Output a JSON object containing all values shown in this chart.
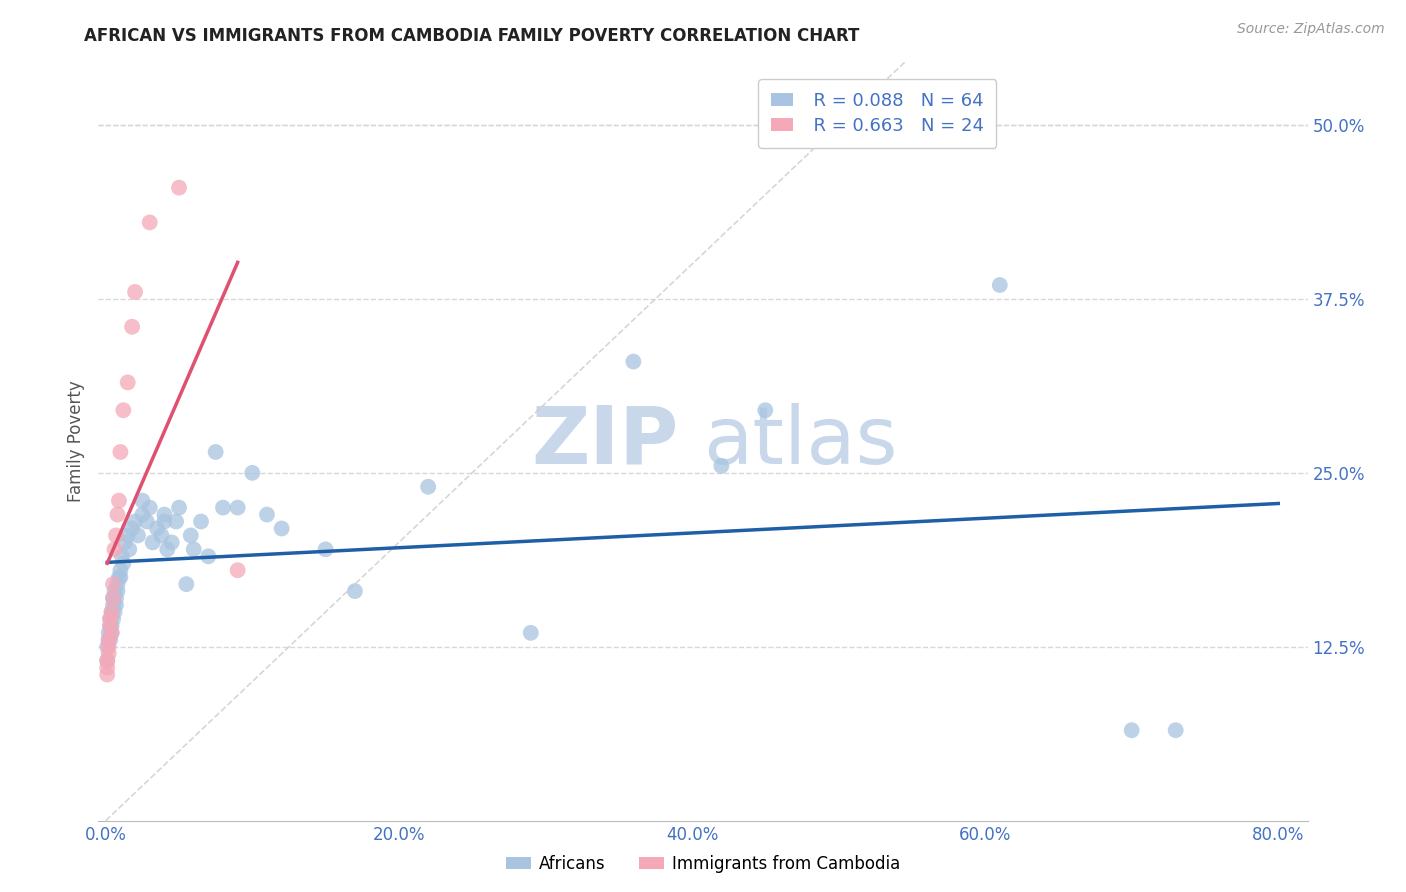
{
  "title": "AFRICAN VS IMMIGRANTS FROM CAMBODIA FAMILY POVERTY CORRELATION CHART",
  "source": "Source: ZipAtlas.com",
  "xlabel_ticks": [
    "0.0%",
    "20.0%",
    "40.0%",
    "60.0%",
    "80.0%"
  ],
  "ylabel_ticks": [
    "12.5%",
    "25.0%",
    "37.5%",
    "50.0%"
  ],
  "xlabel_vals": [
    0.0,
    0.2,
    0.4,
    0.6,
    0.8
  ],
  "ylabel_vals": [
    0.125,
    0.25,
    0.375,
    0.5
  ],
  "xlim": [
    -0.005,
    0.82
  ],
  "ylim": [
    0.0,
    0.545
  ],
  "africans_x": [
    0.001,
    0.001,
    0.002,
    0.002,
    0.003,
    0.003,
    0.003,
    0.004,
    0.004,
    0.004,
    0.005,
    0.005,
    0.005,
    0.006,
    0.006,
    0.007,
    0.007,
    0.008,
    0.008,
    0.009,
    0.01,
    0.01,
    0.011,
    0.012,
    0.013,
    0.015,
    0.016,
    0.018,
    0.02,
    0.022,
    0.025,
    0.025,
    0.028,
    0.03,
    0.032,
    0.035,
    0.038,
    0.04,
    0.04,
    0.042,
    0.045,
    0.048,
    0.05,
    0.055,
    0.058,
    0.06,
    0.065,
    0.07,
    0.075,
    0.08,
    0.09,
    0.1,
    0.11,
    0.12,
    0.15,
    0.17,
    0.22,
    0.29,
    0.36,
    0.42,
    0.45,
    0.61,
    0.7,
    0.73
  ],
  "africans_y": [
    0.115,
    0.125,
    0.13,
    0.135,
    0.13,
    0.14,
    0.145,
    0.135,
    0.14,
    0.15,
    0.145,
    0.155,
    0.16,
    0.165,
    0.15,
    0.16,
    0.155,
    0.17,
    0.165,
    0.175,
    0.175,
    0.18,
    0.19,
    0.185,
    0.2,
    0.205,
    0.195,
    0.21,
    0.215,
    0.205,
    0.22,
    0.23,
    0.215,
    0.225,
    0.2,
    0.21,
    0.205,
    0.215,
    0.22,
    0.195,
    0.2,
    0.215,
    0.225,
    0.17,
    0.205,
    0.195,
    0.215,
    0.19,
    0.265,
    0.225,
    0.225,
    0.25,
    0.22,
    0.21,
    0.195,
    0.165,
    0.24,
    0.135,
    0.33,
    0.255,
    0.295,
    0.385,
    0.065,
    0.065
  ],
  "cambodia_x": [
    0.001,
    0.001,
    0.001,
    0.002,
    0.002,
    0.002,
    0.003,
    0.003,
    0.004,
    0.004,
    0.005,
    0.005,
    0.006,
    0.007,
    0.008,
    0.009,
    0.01,
    0.012,
    0.015,
    0.018,
    0.02,
    0.03,
    0.05,
    0.09
  ],
  "cambodia_y": [
    0.105,
    0.11,
    0.115,
    0.12,
    0.125,
    0.13,
    0.14,
    0.145,
    0.15,
    0.135,
    0.16,
    0.17,
    0.195,
    0.205,
    0.22,
    0.23,
    0.265,
    0.295,
    0.315,
    0.355,
    0.38,
    0.43,
    0.455,
    0.18
  ],
  "african_color": "#a8c4e0",
  "cambodia_color": "#f4a8b8",
  "african_line_color": "#1f5fa6",
  "cambodia_line_color": "#e05070",
  "diagonal_color": "#cccccc",
  "legend_R_african": "R = 0.088",
  "legend_N_african": "N = 64",
  "legend_R_cambodia": "R = 0.663",
  "legend_N_cambodia": "N = 24",
  "watermark_zip": "ZIP",
  "watermark_atlas": "atlas",
  "watermark_color": "#c8d8ea",
  "grid_color": "#d8d8d8",
  "background_color": "#ffffff",
  "title_fontsize": 12,
  "axis_label_color": "#4472c4",
  "tick_label_color": "#4472c4"
}
